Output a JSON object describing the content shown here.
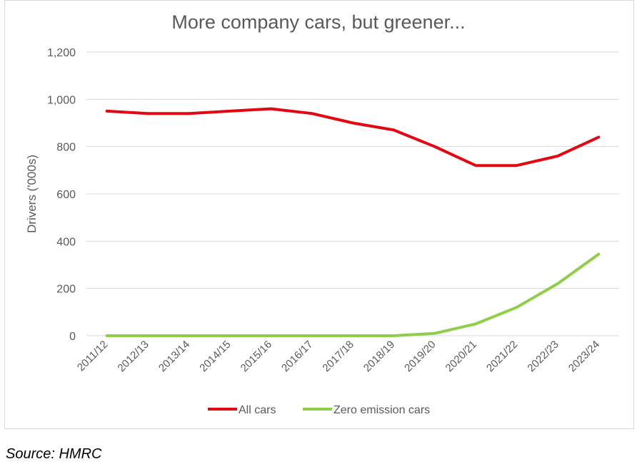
{
  "source_note": "Source: HMRC",
  "chart_data": {
    "type": "line",
    "title": "More company cars, but greener...",
    "ylabel": "Drivers  ('000s)",
    "xlabel": "",
    "ylim": [
      0,
      1200
    ],
    "yticks": [
      0,
      200,
      400,
      600,
      800,
      1000,
      1200
    ],
    "ytick_labels": [
      "0",
      "200",
      "400",
      "600",
      "800",
      "1,000",
      "1,200"
    ],
    "grid": true,
    "legend_position": "bottom",
    "categories": [
      "2011/12",
      "2012/13",
      "2013/14",
      "2014/15",
      "2015/16",
      "2016/17",
      "2017/18",
      "2018/19",
      "2019/20",
      "2020/21",
      "2021/22",
      "2022/23",
      "2023/24"
    ],
    "series": [
      {
        "name": "All cars",
        "color": "#e30613",
        "values": [
          950,
          940,
          940,
          950,
          960,
          940,
          900,
          870,
          800,
          720,
          720,
          760,
          840
        ]
      },
      {
        "name": "Zero emission cars",
        "color": "#8fce4a",
        "values": [
          0,
          0,
          0,
          0,
          0,
          0,
          0,
          0,
          10,
          50,
          120,
          220,
          345
        ]
      }
    ]
  }
}
